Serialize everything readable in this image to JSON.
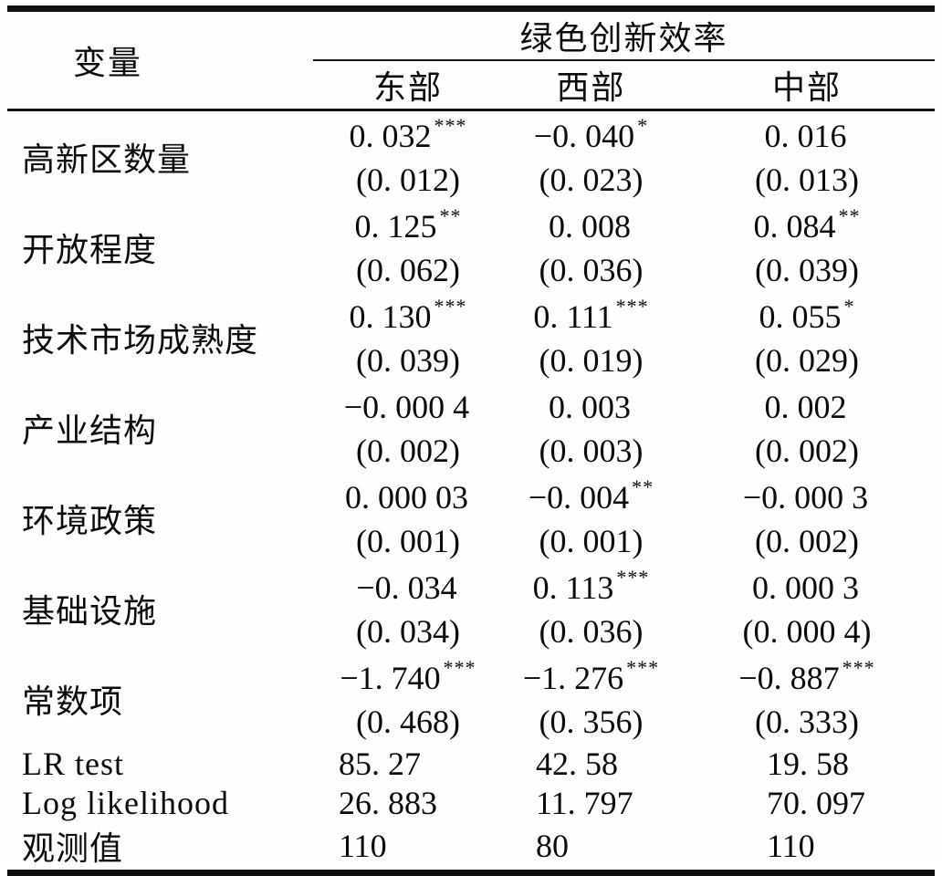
{
  "table": {
    "header": {
      "var_label": "变量",
      "span_label": "绿色创新效率",
      "columns": [
        "东部",
        "西部",
        "中部"
      ]
    },
    "rows": [
      {
        "label": "高新区数量",
        "cells": [
          {
            "coef": "0. 032",
            "stars": "***",
            "se": "(0. 012)"
          },
          {
            "coef": "−0. 040",
            "stars": "*",
            "se": "(0. 023)"
          },
          {
            "coef": "0. 016",
            "stars": "",
            "se": "(0. 013)"
          }
        ]
      },
      {
        "label": "开放程度",
        "cells": [
          {
            "coef": "0. 125",
            "stars": "**",
            "se": "(0. 062)"
          },
          {
            "coef": "0. 008",
            "stars": "",
            "se": "(0. 036)"
          },
          {
            "coef": "0. 084",
            "stars": "**",
            "se": "(0. 039)"
          }
        ]
      },
      {
        "label": "技术市场成熟度",
        "cells": [
          {
            "coef": "0. 130",
            "stars": "***",
            "se": "(0. 039)"
          },
          {
            "coef": "0. 111",
            "stars": "***",
            "se": "(0. 019)"
          },
          {
            "coef": "0. 055",
            "stars": "*",
            "se": "(0. 029)"
          }
        ]
      },
      {
        "label": "产业结构",
        "cells": [
          {
            "coef": "−0. 000 4",
            "stars": "",
            "se": "(0. 002)"
          },
          {
            "coef": "0. 003",
            "stars": "",
            "se": "(0. 003)"
          },
          {
            "coef": "0. 002",
            "stars": "",
            "se": "(0. 002)"
          }
        ]
      },
      {
        "label": "环境政策",
        "cells": [
          {
            "coef": "0. 000 03",
            "stars": "",
            "se": "(0. 001)"
          },
          {
            "coef": "−0. 004",
            "stars": "**",
            "se": "(0. 001)"
          },
          {
            "coef": "−0. 000 3",
            "stars": "",
            "se": "(0. 002)"
          }
        ]
      },
      {
        "label": "基础设施",
        "cells": [
          {
            "coef": "−0. 034",
            "stars": "",
            "se": "(0. 034)"
          },
          {
            "coef": "0. 113",
            "stars": "***",
            "se": "(0. 036)"
          },
          {
            "coef": "0. 000 3",
            "stars": "",
            "se": "(0. 000 4)"
          }
        ]
      },
      {
        "label": "常数项",
        "cells": [
          {
            "coef": "−1. 740",
            "stars": "***",
            "se": "(0. 468)"
          },
          {
            "coef": "−1. 276",
            "stars": "***",
            "se": "(0. 356)"
          },
          {
            "coef": "−0. 887",
            "stars": "***",
            "se": "(0. 333)"
          }
        ]
      }
    ],
    "stats": [
      {
        "label": "LR test",
        "values": [
          "85. 27",
          "42. 58",
          "19. 58"
        ]
      },
      {
        "label": "Log likelihood",
        "values": [
          "26. 883",
          "11. 797",
          "70. 097"
        ]
      },
      {
        "label": "观测值",
        "values": [
          "110",
          "80",
          "110"
        ]
      }
    ]
  }
}
